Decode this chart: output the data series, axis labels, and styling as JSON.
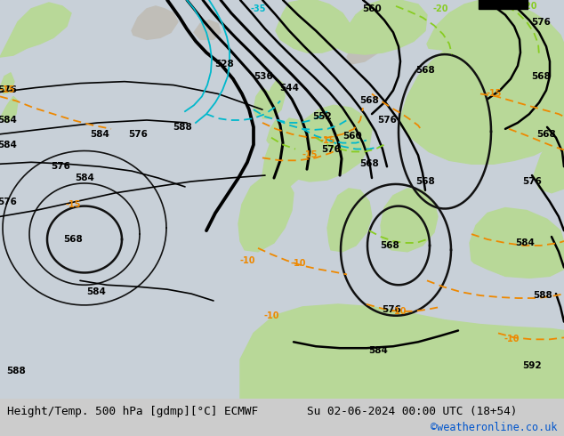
{
  "title_left": "Height/Temp. 500 hPa [gdmp][°C] ECMWF",
  "title_right": "Su 02-06-2024 00:00 UTC (18+54)",
  "copyright": "©weatheronline.co.uk",
  "sea_color": "#c8d0d8",
  "land_gray": "#c0beb8",
  "land_green": "#b8d898",
  "fig_width": 6.34,
  "fig_height": 4.9,
  "dpi": 100
}
